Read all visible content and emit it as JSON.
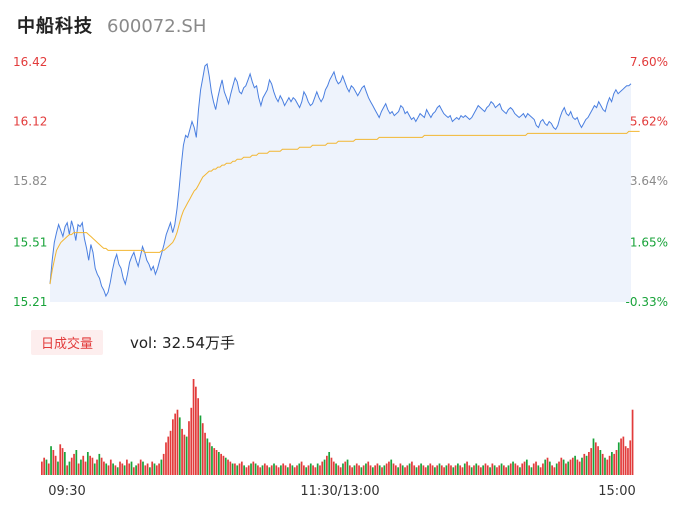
{
  "header": {
    "name": "中船科技",
    "code": "600072.SH"
  },
  "colors": {
    "up": "#e23b3b",
    "down": "#19a33a",
    "neutral": "#8a8a8a",
    "price_line": "#4a7fe0",
    "avg_line": "#f2b632"
  },
  "volume": {
    "tag": "日成交量",
    "label": "vol: 32.54万手"
  },
  "chart_data": [
    {
      "type": "line",
      "title": "",
      "x_labels": [
        "09:30",
        "11:30/13:00",
        "15:00"
      ],
      "ylim": [
        15.21,
        16.42
      ],
      "y_ticks": [
        {
          "value": 16.42,
          "label": "16.42",
          "right": "7.60%",
          "color": "up"
        },
        {
          "value": 16.12,
          "label": "16.12",
          "right": "5.62%",
          "color": "up"
        },
        {
          "value": 15.82,
          "label": "15.82",
          "right": "3.64%",
          "color": "neutral"
        },
        {
          "value": 15.51,
          "label": "15.51",
          "right": "1.65%",
          "color": "down"
        },
        {
          "value": 15.21,
          "label": "15.21",
          "right": "-0.33%",
          "color": "down"
        }
      ],
      "series": [
        {
          "key": "price",
          "values": [
            15.3,
            15.42,
            15.51,
            15.56,
            15.6,
            15.57,
            15.54,
            15.59,
            15.61,
            15.55,
            15.62,
            15.58,
            15.52,
            15.6,
            15.59,
            15.61,
            15.53,
            15.48,
            15.42,
            15.5,
            15.46,
            15.38,
            15.35,
            15.33,
            15.29,
            15.27,
            15.24,
            15.26,
            15.31,
            15.37,
            15.42,
            15.45,
            15.4,
            15.38,
            15.33,
            15.3,
            15.35,
            15.41,
            15.44,
            15.46,
            15.42,
            15.39,
            15.44,
            15.49,
            15.46,
            15.42,
            15.4,
            15.37,
            15.39,
            15.35,
            15.38,
            15.42,
            15.46,
            15.5,
            15.55,
            15.58,
            15.61,
            15.56,
            15.6,
            15.68,
            15.78,
            15.9,
            16.0,
            16.05,
            16.04,
            16.08,
            16.12,
            16.09,
            16.04,
            16.18,
            16.28,
            16.34,
            16.4,
            16.41,
            16.35,
            16.27,
            16.22,
            16.18,
            16.24,
            16.29,
            16.33,
            16.27,
            16.24,
            16.21,
            16.26,
            16.3,
            16.34,
            16.32,
            16.27,
            16.26,
            16.29,
            16.3,
            16.33,
            16.36,
            16.32,
            16.29,
            16.3,
            16.24,
            16.2,
            16.24,
            16.26,
            16.28,
            16.33,
            16.31,
            16.27,
            16.24,
            16.22,
            16.25,
            16.23,
            16.2,
            16.22,
            16.24,
            16.22,
            16.24,
            16.23,
            16.21,
            16.19,
            16.22,
            16.27,
            16.25,
            16.22,
            16.2,
            16.21,
            16.24,
            16.27,
            16.24,
            16.22,
            16.24,
            16.28,
            16.3,
            16.33,
            16.35,
            16.37,
            16.33,
            16.31,
            16.32,
            16.35,
            16.32,
            16.29,
            16.27,
            16.3,
            16.29,
            16.27,
            16.25,
            16.27,
            16.29,
            16.3,
            16.27,
            16.24,
            16.22,
            16.2,
            16.18,
            16.16,
            16.14,
            16.17,
            16.19,
            16.21,
            16.18,
            16.16,
            16.17,
            16.15,
            16.16,
            16.17,
            16.2,
            16.19,
            16.16,
            16.17,
            16.15,
            16.13,
            16.14,
            16.12,
            16.14,
            16.16,
            16.15,
            16.14,
            16.18,
            16.16,
            16.14,
            16.16,
            16.17,
            16.19,
            16.2,
            16.18,
            16.16,
            16.15,
            16.14,
            16.15,
            16.12,
            16.13,
            16.14,
            16.13,
            16.15,
            16.14,
            16.15,
            16.14,
            16.13,
            16.14,
            16.16,
            16.18,
            16.2,
            16.19,
            16.18,
            16.17,
            16.19,
            16.2,
            16.22,
            16.21,
            16.19,
            16.2,
            16.21,
            16.18,
            16.17,
            16.16,
            16.18,
            16.19,
            16.18,
            16.16,
            16.15,
            16.14,
            16.15,
            16.16,
            16.14,
            16.16,
            16.15,
            16.14,
            16.13,
            16.1,
            16.09,
            16.12,
            16.13,
            16.11,
            16.1,
            16.12,
            16.11,
            16.09,
            16.08,
            16.1,
            16.14,
            16.17,
            16.19,
            16.16,
            16.15,
            16.17,
            16.14,
            16.13,
            16.14,
            16.11,
            16.09,
            16.11,
            16.13,
            16.14,
            16.16,
            16.18,
            16.2,
            16.19,
            16.22,
            16.2,
            16.18,
            16.17,
            16.21,
            16.24,
            16.22,
            16.26,
            16.28,
            16.26,
            16.27,
            16.28,
            16.29,
            16.3,
            16.3,
            16.31
          ]
        },
        {
          "key": "avg",
          "values": [
            15.3,
            15.37,
            15.42,
            15.47,
            15.49,
            15.51,
            15.52,
            15.53,
            15.54,
            15.55,
            15.55,
            15.56,
            15.56,
            15.56,
            15.56,
            15.56,
            15.56,
            15.56,
            15.55,
            15.54,
            15.53,
            15.52,
            15.51,
            15.5,
            15.49,
            15.48,
            15.48,
            15.47,
            15.47,
            15.47,
            15.47,
            15.47,
            15.47,
            15.47,
            15.47,
            15.47,
            15.47,
            15.47,
            15.47,
            15.47,
            15.47,
            15.47,
            15.47,
            15.47,
            15.46,
            15.46,
            15.46,
            15.46,
            15.46,
            15.46,
            15.46,
            15.46,
            15.47,
            15.47,
            15.48,
            15.49,
            15.5,
            15.51,
            15.53,
            15.56,
            15.6,
            15.64,
            15.67,
            15.69,
            15.71,
            15.73,
            15.75,
            15.77,
            15.78,
            15.8,
            15.82,
            15.84,
            15.85,
            15.86,
            15.87,
            15.87,
            15.88,
            15.88,
            15.89,
            15.89,
            15.9,
            15.9,
            15.91,
            15.91,
            15.91,
            15.92,
            15.92,
            15.93,
            15.93,
            15.93,
            15.94,
            15.94,
            15.94,
            15.94,
            15.95,
            15.95,
            15.95,
            15.96,
            15.96,
            15.96,
            15.96,
            15.96,
            15.97,
            15.97,
            15.97,
            15.97,
            15.97,
            15.97,
            15.98,
            15.98,
            15.98,
            15.98,
            15.98,
            15.98,
            15.98,
            15.98,
            15.99,
            15.99,
            15.99,
            15.99,
            15.99,
            15.99,
            16.0,
            16.0,
            16.0,
            16.0,
            16.0,
            16.0,
            16.0,
            16.01,
            16.01,
            16.01,
            16.01,
            16.01,
            16.02,
            16.02,
            16.02,
            16.02,
            16.02,
            16.02,
            16.02,
            16.02,
            16.03,
            16.03,
            16.03,
            16.03,
            16.03,
            16.03,
            16.03,
            16.03,
            16.03,
            16.03,
            16.03,
            16.04,
            16.04,
            16.04,
            16.04,
            16.04,
            16.04,
            16.04,
            16.04,
            16.04,
            16.04,
            16.04,
            16.04,
            16.04,
            16.04,
            16.04,
            16.04,
            16.04,
            16.04,
            16.04,
            16.04,
            16.04,
            16.05,
            16.05,
            16.05,
            16.05,
            16.05,
            16.05,
            16.05,
            16.05,
            16.05,
            16.05,
            16.05,
            16.05,
            16.05,
            16.05,
            16.05,
            16.05,
            16.05,
            16.05,
            16.05,
            16.05,
            16.05,
            16.05,
            16.05,
            16.05,
            16.05,
            16.05,
            16.05,
            16.05,
            16.05,
            16.05,
            16.05,
            16.05,
            16.05,
            16.05,
            16.05,
            16.05,
            16.05,
            16.05,
            16.05,
            16.05,
            16.05,
            16.05,
            16.05,
            16.05,
            16.05,
            16.05,
            16.05,
            16.05,
            16.06,
            16.06,
            16.06,
            16.06,
            16.06,
            16.06,
            16.06,
            16.06,
            16.06,
            16.06,
            16.06,
            16.06,
            16.06,
            16.06,
            16.06,
            16.06,
            16.06,
            16.06,
            16.06,
            16.06,
            16.06,
            16.06,
            16.06,
            16.06,
            16.06,
            16.06,
            16.06,
            16.06,
            16.06,
            16.06,
            16.06,
            16.06,
            16.06,
            16.06,
            16.06,
            16.06,
            16.06,
            16.06,
            16.06,
            16.06,
            16.06,
            16.06,
            16.06,
            16.06,
            16.06,
            16.06,
            16.06,
            16.07,
            16.07,
            16.07,
            16.07,
            16.07,
            16.07
          ]
        }
      ]
    },
    {
      "type": "bar",
      "title": "",
      "x_labels": [
        "09:30",
        "11:30/13:00",
        "15:00"
      ],
      "ylim": [
        0,
        100
      ],
      "values": [
        14,
        18,
        16,
        12,
        30,
        26,
        20,
        14,
        32,
        28,
        24,
        10,
        14,
        18,
        22,
        26,
        12,
        16,
        20,
        14,
        24,
        20,
        18,
        12,
        16,
        22,
        18,
        14,
        12,
        10,
        16,
        12,
        10,
        8,
        14,
        12,
        10,
        16,
        12,
        14,
        8,
        10,
        12,
        16,
        14,
        10,
        12,
        8,
        14,
        12,
        10,
        12,
        16,
        22,
        34,
        40,
        46,
        58,
        64,
        68,
        60,
        48,
        42,
        40,
        56,
        70,
        100,
        92,
        80,
        62,
        54,
        44,
        38,
        34,
        30,
        28,
        26,
        24,
        22,
        20,
        18,
        16,
        14,
        12,
        12,
        10,
        12,
        14,
        10,
        8,
        10,
        12,
        14,
        12,
        10,
        8,
        10,
        12,
        10,
        8,
        10,
        12,
        10,
        8,
        10,
        12,
        10,
        8,
        12,
        10,
        8,
        10,
        12,
        14,
        10,
        8,
        10,
        12,
        10,
        8,
        12,
        10,
        14,
        16,
        20,
        24,
        18,
        14,
        12,
        10,
        8,
        12,
        14,
        16,
        10,
        8,
        10,
        12,
        10,
        8,
        10,
        12,
        14,
        10,
        8,
        10,
        12,
        10,
        8,
        10,
        12,
        14,
        16,
        12,
        10,
        8,
        12,
        10,
        8,
        10,
        12,
        14,
        10,
        8,
        10,
        12,
        10,
        8,
        10,
        12,
        10,
        8,
        10,
        12,
        10,
        8,
        10,
        12,
        10,
        8,
        10,
        12,
        10,
        8,
        12,
        14,
        10,
        8,
        10,
        12,
        10,
        8,
        10,
        12,
        10,
        8,
        12,
        10,
        8,
        10,
        12,
        10,
        8,
        10,
        12,
        14,
        12,
        10,
        8,
        12,
        14,
        16,
        10,
        8,
        12,
        14,
        10,
        8,
        12,
        16,
        18,
        14,
        10,
        8,
        12,
        14,
        18,
        16,
        12,
        14,
        16,
        18,
        20,
        16,
        14,
        18,
        22,
        20,
        24,
        28,
        38,
        34,
        30,
        26,
        22,
        18,
        16,
        20,
        24,
        22,
        26,
        34,
        38,
        40,
        30,
        28,
        36,
        68
      ],
      "colors": [
        "up",
        "up",
        "down",
        "up",
        "down",
        "up",
        "up",
        "down",
        "up",
        "up",
        "down",
        "up",
        "down",
        "up",
        "up",
        "down",
        "up",
        "down",
        "up",
        "up",
        "down",
        "up",
        "up",
        "down",
        "up",
        "down",
        "up",
        "up",
        "down",
        "up",
        "up",
        "down",
        "up",
        "down",
        "up",
        "up",
        "down",
        "up",
        "up",
        "down",
        "up",
        "down",
        "up",
        "up",
        "down",
        "up",
        "up",
        "down",
        "up",
        "down",
        "up",
        "up",
        "down",
        "up",
        "up",
        "up",
        "up",
        "up",
        "up",
        "up",
        "down",
        "up",
        "up",
        "down",
        "up",
        "up",
        "up",
        "up",
        "up",
        "down",
        "up",
        "up",
        "down",
        "up",
        "down",
        "up",
        "up",
        "down",
        "up",
        "up",
        "down",
        "up",
        "up",
        "down",
        "up",
        "down",
        "up",
        "up",
        "down",
        "up",
        "up",
        "down",
        "up",
        "down",
        "up",
        "up",
        "down",
        "up",
        "up",
        "down",
        "up",
        "down",
        "up",
        "up",
        "down",
        "up",
        "up",
        "down",
        "up",
        "down",
        "up",
        "up",
        "down",
        "up",
        "up",
        "down",
        "up",
        "down",
        "up",
        "up",
        "down",
        "up",
        "up",
        "down",
        "up",
        "down",
        "up",
        "up",
        "down",
        "up",
        "up",
        "down",
        "up",
        "down",
        "up",
        "up",
        "down",
        "up",
        "up",
        "down",
        "up",
        "down",
        "up",
        "up",
        "down",
        "up",
        "up",
        "down",
        "up",
        "down",
        "up",
        "up",
        "down",
        "up",
        "up",
        "down",
        "up",
        "down",
        "up",
        "up",
        "down",
        "up",
        "up",
        "down",
        "up",
        "down",
        "up",
        "up",
        "down",
        "up",
        "up",
        "down",
        "up",
        "down",
        "up",
        "up",
        "down",
        "up",
        "up",
        "down",
        "up",
        "down",
        "up",
        "up",
        "down",
        "up",
        "up",
        "down",
        "up",
        "down",
        "up",
        "up",
        "down",
        "up",
        "up",
        "down",
        "up",
        "down",
        "up",
        "up",
        "down",
        "up",
        "up",
        "down",
        "up",
        "down",
        "up",
        "up",
        "down",
        "up",
        "up",
        "down",
        "up",
        "down",
        "up",
        "up",
        "down",
        "up",
        "up",
        "down",
        "up",
        "down",
        "up",
        "up",
        "down",
        "up",
        "up",
        "down",
        "up",
        "down",
        "up",
        "up",
        "down",
        "up",
        "up",
        "down",
        "up",
        "down",
        "up",
        "up",
        "down",
        "up",
        "up",
        "down",
        "up",
        "down",
        "up",
        "up",
        "down",
        "up",
        "up",
        "down",
        "up",
        "up",
        "up"
      ]
    }
  ]
}
